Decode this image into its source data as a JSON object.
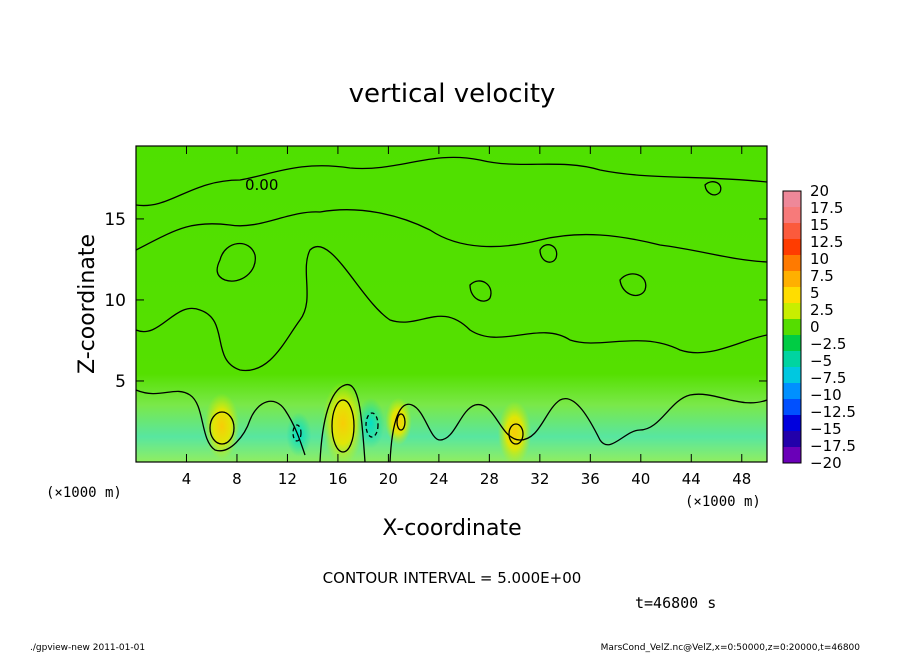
{
  "chart_data": {
    "type": "heatmap",
    "title": "vertical velocity",
    "xlabel": "X-coordinate",
    "ylabel": "Z-coordinate",
    "x_unit": "(×1000 m)",
    "y_unit": "(×1000 m)",
    "xlim": [
      0,
      50
    ],
    "ylim": [
      0,
      19.5
    ],
    "x_ticks": [
      "4",
      "8",
      "12",
      "16",
      "20",
      "24",
      "28",
      "32",
      "36",
      "40",
      "44",
      "48"
    ],
    "y_ticks": [
      "5",
      "10",
      "15"
    ],
    "contour_interval_text": "CONTOUR INTERVAL = 5.000E+00",
    "contour_label": "0.00",
    "time_label": "t=46800 s",
    "footer_left": "./gpview-new  2011-01-01",
    "footer_right": "MarsCond_VelZ.nc@VelZ,x=0:50000,z=0:20000,t=46800",
    "colorbar": {
      "min": -20,
      "max": 20,
      "labels": [
        "20",
        "17.5",
        "15",
        "12.5",
        "10",
        "7.5",
        "5",
        "2.5",
        "0",
        "−2.5",
        "−5",
        "−7.5",
        "−10",
        "−12.5",
        "−15",
        "−17.5",
        "−20"
      ],
      "colors": [
        "#ee8899",
        "#f77a7a",
        "#fb5a3c",
        "#ff3c00",
        "#ff7a00",
        "#ffb000",
        "#ffdd00",
        "#c8ee00",
        "#55dd00",
        "#00cc44",
        "#00d4a0",
        "#00c8e0",
        "#0090ff",
        "#0050ff",
        "#0000dd",
        "#2200aa",
        "#6a00b8"
      ]
    },
    "features": [
      {
        "name": "updraft",
        "x": 6.8,
        "z": 2.2,
        "peak": 6.0
      },
      {
        "name": "updraft",
        "x": 16.4,
        "z": 2.4,
        "peak": 8.5
      },
      {
        "name": "downdraft",
        "x": 18.6,
        "z": 2.4,
        "peak": -3.5
      },
      {
        "name": "downdraft",
        "x": 12.9,
        "z": 1.7,
        "peak": -2.5
      },
      {
        "name": "updraft",
        "x": 20.8,
        "z": 2.5,
        "peak": 3.0
      },
      {
        "name": "updraft",
        "x": 30.0,
        "z": 1.8,
        "peak": 5.5
      }
    ]
  }
}
